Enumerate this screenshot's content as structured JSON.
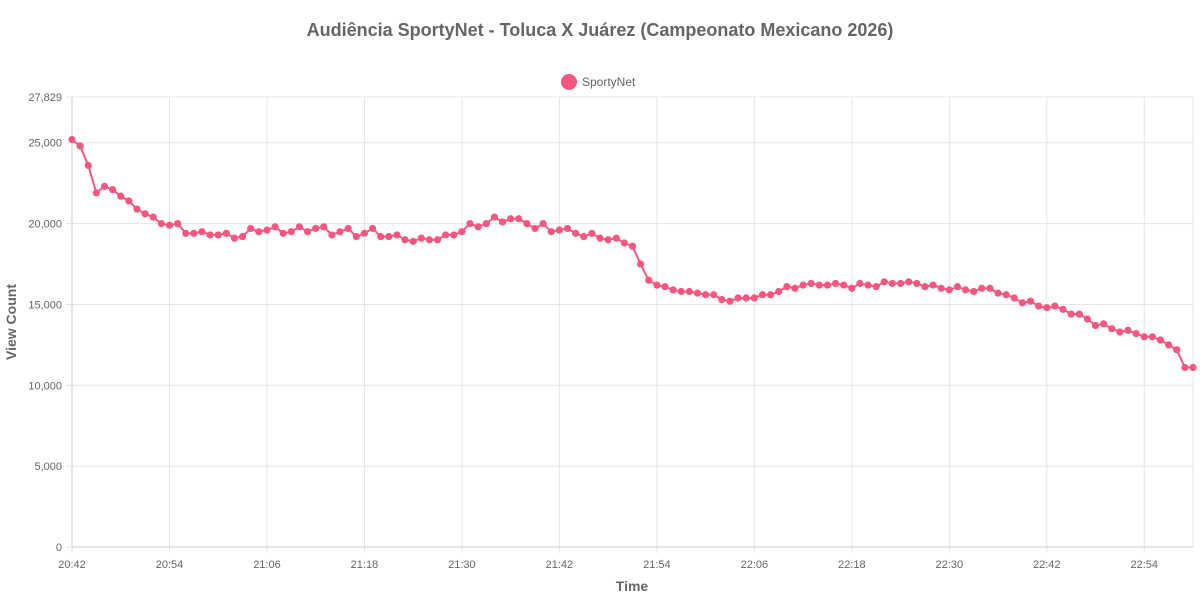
{
  "chart_data": {
    "type": "line",
    "title": "Audiência SportyNet - Toluca X Juárez (Campeonato Mexicano 2026)",
    "xlabel": "Time",
    "ylabel": "View Count",
    "ylim": [
      0,
      27829
    ],
    "y_ticks": [
      "0",
      "5,000",
      "10,000",
      "15,000",
      "20,000",
      "25,000",
      "27,829"
    ],
    "y_tick_values": [
      0,
      5000,
      10000,
      15000,
      20000,
      25000,
      27829
    ],
    "x_tick_labels": [
      "20:42",
      "20:54",
      "21:06",
      "21:18",
      "21:30",
      "21:42",
      "21:54",
      "22:06",
      "22:18",
      "22:30",
      "22:42",
      "22:54"
    ],
    "x_tick_minutes": [
      0,
      12,
      24,
      36,
      48,
      60,
      72,
      84,
      96,
      108,
      120,
      132
    ],
    "x_start": "20:42",
    "x_step_minutes": 1,
    "grid": true,
    "legend_position": "top",
    "series": [
      {
        "name": "SportyNet",
        "color": "#f5577f",
        "values": [
          25200,
          24800,
          23600,
          21900,
          22300,
          22100,
          21700,
          21400,
          20900,
          20600,
          20400,
          20000,
          19900,
          20000,
          19400,
          19400,
          19500,
          19300,
          19300,
          19400,
          19100,
          19200,
          19700,
          19500,
          19600,
          19800,
          19400,
          19500,
          19800,
          19500,
          19700,
          19800,
          19300,
          19500,
          19700,
          19200,
          19400,
          19700,
          19200,
          19200,
          19300,
          19000,
          18900,
          19100,
          19000,
          19000,
          19300,
          19300,
          19500,
          20000,
          19800,
          20000,
          20400,
          20100,
          20300,
          20300,
          20000,
          19700,
          20000,
          19500,
          19600,
          19700,
          19400,
          19200,
          19400,
          19100,
          19000,
          19100,
          18800,
          18600,
          17500,
          16500,
          16200,
          16100,
          15900,
          15800,
          15800,
          15700,
          15600,
          15600,
          15300,
          15200,
          15400,
          15400,
          15400,
          15600,
          15600,
          15800,
          16100,
          16000,
          16200,
          16300,
          16200,
          16200,
          16300,
          16200,
          16000,
          16300,
          16200,
          16100,
          16400,
          16300,
          16300,
          16400,
          16300,
          16100,
          16200,
          16000,
          15900,
          16100,
          15900,
          15800,
          16000,
          16000,
          15700,
          15600,
          15400,
          15100,
          15200,
          14900,
          14800,
          14900,
          14700,
          14400,
          14400,
          14100,
          13700,
          13800,
          13500,
          13300,
          13400,
          13200,
          13000,
          13000,
          12800,
          12500,
          12200,
          11100,
          11100
        ]
      }
    ]
  }
}
